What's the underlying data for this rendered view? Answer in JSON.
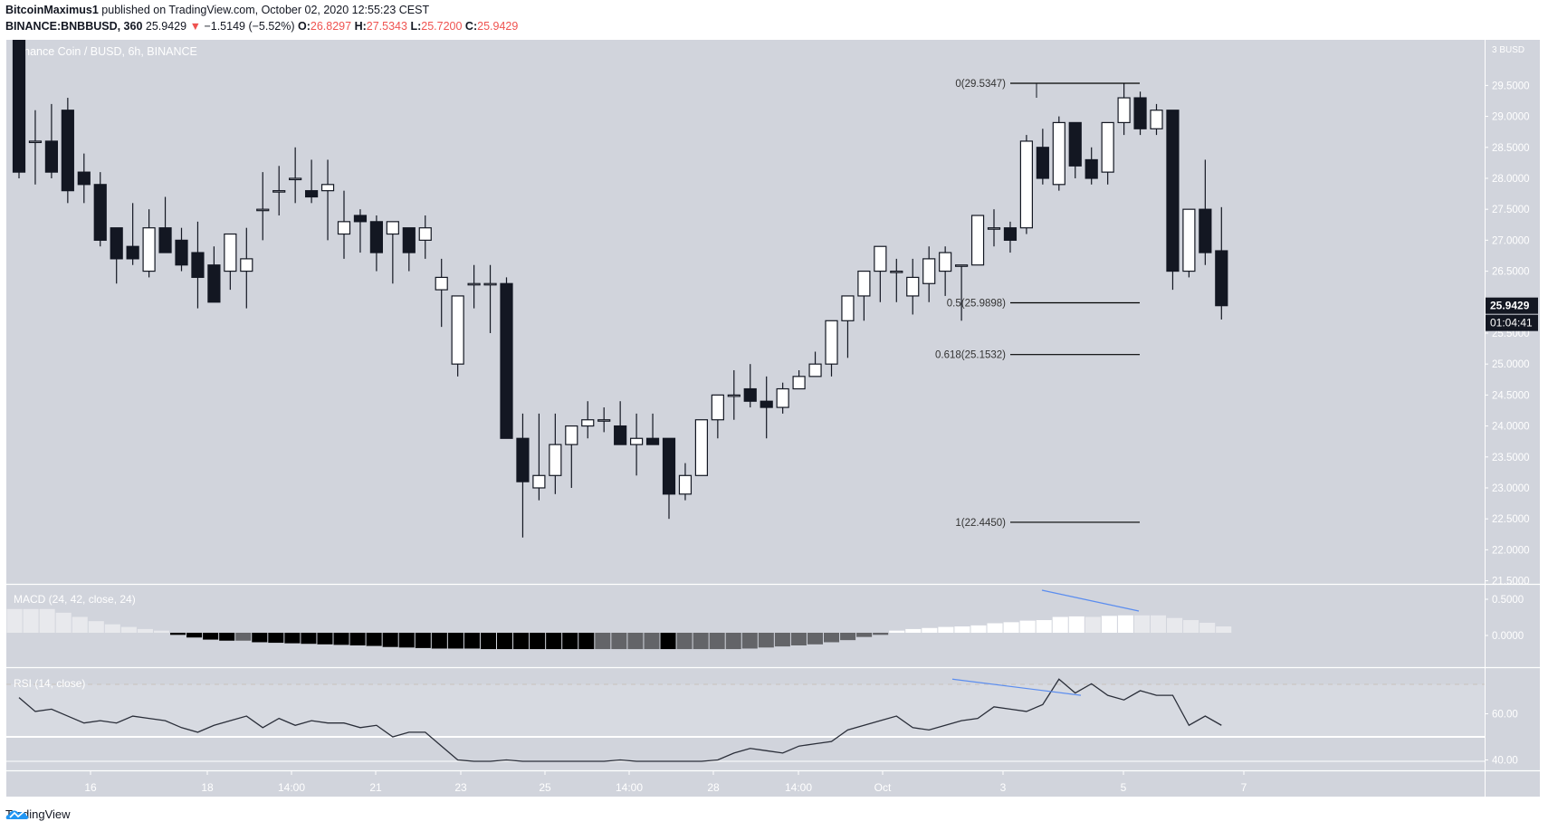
{
  "header": {
    "publisher": "BitcoinMaximus1",
    "published_text": "published on TradingView.com, October 02, 2020 12:55:23 CEST",
    "symbol": "BINANCE:BNBBUSD, 360",
    "last_price": "25.9429",
    "change": "−1.5149 (−5.52%)",
    "change_direction_icon": "triangle-down-icon",
    "open_label": "O:",
    "open": "26.8297",
    "high_label": "H:",
    "high": "27.5343",
    "low_label": "L:",
    "low": "25.7200",
    "close_label": "C:",
    "close": "25.9429"
  },
  "chart_title": "Binance Coin / BUSD, 6h, BINANCE",
  "price_axis": {
    "unit": "BUSD",
    "ticks": [
      "29.5000",
      "29.0000",
      "28.5000",
      "28.0000",
      "27.5000",
      "27.0000",
      "26.5000",
      "25.5000",
      "25.0000",
      "24.5000",
      "24.0000",
      "23.5000",
      "23.0000",
      "22.5000",
      "22.0000",
      "21.5000"
    ],
    "current_price_label": "25.9429",
    "countdown_label": "01:04:41"
  },
  "time_axis": {
    "ticks": [
      "16",
      "18",
      "14:00",
      "21",
      "23",
      "25",
      "14:00",
      "28",
      "14:00",
      "Oct",
      "3",
      "5",
      "7"
    ]
  },
  "macd": {
    "label": "MACD (24, 42, close, 24)",
    "ticks": [
      "0.5000",
      "0.0000"
    ]
  },
  "rsi": {
    "label": "RSI (14, close)",
    "ticks": [
      "60.00",
      "40.00"
    ]
  },
  "fib_levels": [
    {
      "label": "0(29.5347)",
      "ratio": 0,
      "price": 29.5347
    },
    {
      "label": "0.5(25.9898)",
      "ratio": 0.5,
      "price": 25.9898
    },
    {
      "label": "0.618(25.1532)",
      "ratio": 0.618,
      "price": 25.1532
    },
    {
      "label": "1(22.4450)",
      "ratio": 1,
      "price": 22.445
    }
  ],
  "footer": {
    "brand": "TradingView"
  },
  "colors": {
    "background": "#d1d4dc",
    "up_candle": "#ffffff",
    "down_candle": "#131722",
    "fib_line": "#000000",
    "divergence_line": "#5b8def",
    "header_value_red": "#ef5350"
  },
  "chart_data": {
    "type": "candlestick",
    "title": "Binance Coin / BUSD, 6h, BINANCE",
    "xlabel": "",
    "ylabel": "BUSD",
    "ylim": [
      21.5,
      29.75
    ],
    "candles": [
      [
        30.4,
        30.9,
        28.0,
        28.1
      ],
      [
        28.6,
        29.1,
        27.9,
        28.6
      ],
      [
        28.6,
        29.2,
        28.0,
        28.1
      ],
      [
        29.1,
        29.3,
        27.6,
        27.8
      ],
      [
        28.1,
        28.4,
        27.6,
        27.9
      ],
      [
        27.9,
        28.1,
        26.9,
        27.0
      ],
      [
        27.2,
        27.2,
        26.3,
        26.7
      ],
      [
        26.9,
        27.6,
        26.6,
        26.7
      ],
      [
        26.5,
        27.5,
        26.4,
        27.2
      ],
      [
        27.2,
        27.7,
        26.8,
        26.8
      ],
      [
        27.0,
        27.2,
        26.5,
        26.6
      ],
      [
        26.8,
        27.3,
        25.9,
        26.4
      ],
      [
        26.6,
        26.9,
        26.1,
        26.0
      ],
      [
        26.5,
        27.1,
        26.2,
        27.1
      ],
      [
        26.5,
        27.2,
        25.9,
        26.7
      ],
      [
        27.5,
        28.1,
        27.0,
        27.5
      ],
      [
        27.8,
        28.2,
        27.4,
        27.8
      ],
      [
        28.0,
        28.5,
        27.6,
        28.0
      ],
      [
        27.8,
        28.3,
        27.6,
        27.7
      ],
      [
        27.8,
        28.3,
        27.0,
        27.9
      ],
      [
        27.1,
        27.8,
        26.7,
        27.3
      ],
      [
        27.4,
        27.5,
        26.8,
        27.3
      ],
      [
        27.3,
        27.4,
        26.5,
        26.8
      ],
      [
        27.1,
        27.3,
        26.3,
        27.3
      ],
      [
        27.2,
        27.2,
        26.5,
        26.8
      ],
      [
        27.0,
        27.4,
        26.7,
        27.2
      ],
      [
        26.2,
        26.7,
        25.6,
        26.4
      ],
      [
        25.0,
        25.6,
        24.8,
        26.1
      ],
      [
        26.3,
        26.6,
        25.9,
        26.3
      ],
      [
        26.3,
        26.6,
        25.5,
        26.3
      ],
      [
        26.3,
        26.4,
        23.8,
        23.8
      ],
      [
        23.8,
        24.2,
        22.2,
        23.1
      ],
      [
        23.0,
        24.2,
        22.8,
        23.2
      ],
      [
        23.2,
        24.2,
        22.9,
        23.7
      ],
      [
        23.7,
        24.0,
        23.0,
        24.0
      ],
      [
        24.0,
        24.4,
        23.8,
        24.1
      ],
      [
        24.1,
        24.3,
        23.9,
        24.1
      ],
      [
        24.0,
        24.4,
        23.7,
        23.7
      ],
      [
        23.7,
        24.2,
        23.2,
        23.8
      ],
      [
        23.8,
        24.2,
        23.8,
        23.7
      ],
      [
        23.8,
        23.8,
        22.5,
        22.9
      ],
      [
        22.9,
        23.4,
        22.8,
        23.2
      ],
      [
        23.2,
        24.1,
        23.2,
        24.1
      ],
      [
        24.1,
        24.5,
        23.8,
        24.5
      ],
      [
        24.5,
        24.9,
        24.1,
        24.5
      ],
      [
        24.6,
        25.0,
        24.3,
        24.4
      ],
      [
        24.4,
        24.8,
        23.8,
        24.3
      ],
      [
        24.3,
        24.7,
        24.2,
        24.6
      ],
      [
        24.6,
        24.9,
        24.6,
        24.8
      ],
      [
        24.8,
        25.2,
        24.8,
        25.0
      ],
      [
        25.0,
        25.6,
        24.8,
        25.7
      ],
      [
        25.7,
        26.1,
        25.1,
        26.1
      ],
      [
        26.1,
        26.4,
        25.7,
        26.5
      ],
      [
        26.5,
        26.9,
        26.0,
        26.9
      ],
      [
        26.5,
        26.7,
        26.0,
        26.5
      ],
      [
        26.1,
        26.7,
        25.8,
        26.4
      ],
      [
        26.3,
        26.9,
        26.0,
        26.7
      ],
      [
        26.5,
        26.9,
        26.1,
        26.8
      ],
      [
        26.6,
        26.6,
        25.7,
        26.6
      ],
      [
        26.6,
        27.3,
        26.8,
        27.4
      ],
      [
        27.2,
        27.5,
        26.9,
        27.2
      ],
      [
        27.2,
        27.3,
        26.8,
        27.0
      ],
      [
        27.2,
        28.7,
        27.1,
        28.6
      ],
      [
        28.5,
        28.8,
        27.9,
        28.0
      ],
      [
        27.9,
        29.0,
        27.8,
        28.9
      ],
      [
        28.9,
        28.9,
        28.0,
        28.2
      ],
      [
        28.3,
        28.5,
        27.9,
        28.0
      ],
      [
        28.1,
        28.9,
        27.9,
        28.9
      ],
      [
        28.9,
        29.5347,
        28.7,
        29.3
      ],
      [
        29.3,
        29.4,
        28.7,
        28.8
      ],
      [
        28.8,
        29.2,
        28.7,
        29.1
      ],
      [
        29.1,
        29.1,
        26.2,
        26.5
      ],
      [
        26.5,
        27.5,
        26.4,
        27.5
      ],
      [
        27.5,
        28.3,
        26.6,
        26.8
      ],
      [
        26.8297,
        27.5343,
        25.72,
        25.9429
      ]
    ],
    "macd_histogram_note": "Histogram falls from ~0.5 to ~-0.35 (around Sept 21-23) then rises to ~0.45 near Sept 30 and declines to ~0.15; blue bearish divergence line drawn on histogram highs",
    "rsi_note": "RSI falls from ~67 to ~36 around Sept 21-23, rises to ~73 near Sept 29, lower high ~68 (bearish divergence line), then drops to ~45",
    "fibonacci": {
      "0": 29.5347,
      "0.5": 25.9898,
      "0.618": 25.1532,
      "1": 22.445
    }
  }
}
